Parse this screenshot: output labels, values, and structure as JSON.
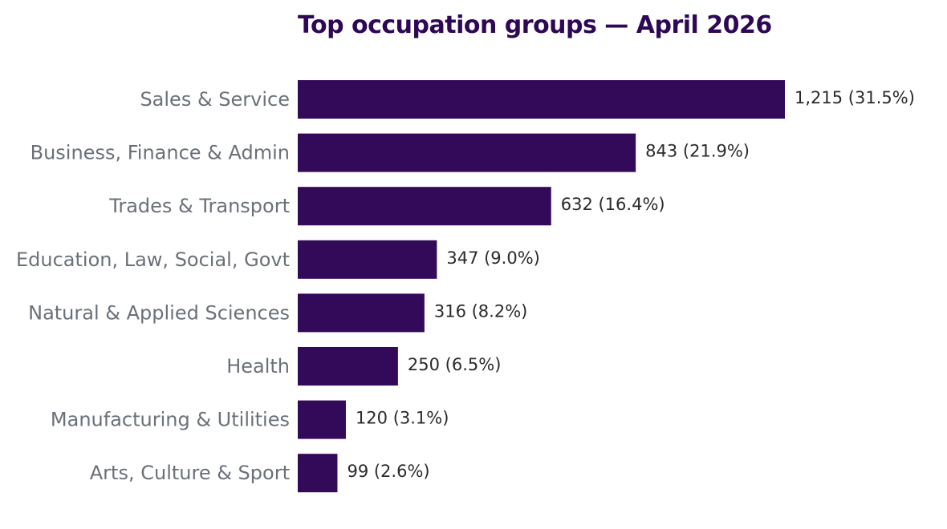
{
  "chart_data": {
    "type": "bar",
    "orientation": "horizontal",
    "title": "Top occupation groups — April 2026",
    "xlabel": "",
    "ylabel": "",
    "categories": [
      "Sales & Service",
      "Business, Finance & Admin",
      "Trades & Transport",
      "Education, Law, Social, Govt",
      "Natural & Applied Sciences",
      "Health",
      "Manufacturing & Utilities",
      "Arts, Culture & Sport"
    ],
    "values": [
      1215,
      843,
      632,
      347,
      316,
      250,
      120,
      99
    ],
    "data_labels": [
      "1,215  (31.5%)",
      "843  (21.9%)",
      "632  (16.4%)",
      "347  (9.0%)",
      "316  (8.2%)",
      "250  (6.5%)",
      "120  (3.1%)",
      "99  (2.6%)"
    ],
    "xlim": [
      0,
      1215
    ],
    "grid": false,
    "legend": "none",
    "bar_color": "#33095a"
  }
}
